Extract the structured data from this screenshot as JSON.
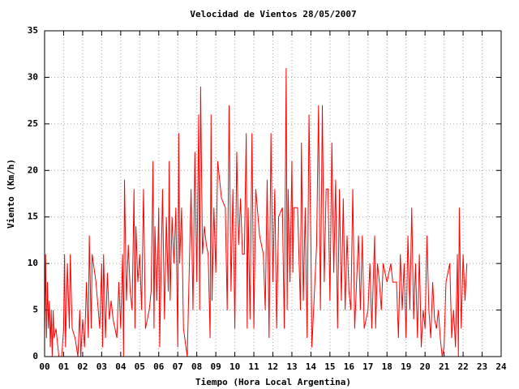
{
  "chart_data": {
    "type": "line",
    "title": "Velocidad de Vientos 28/05/2007",
    "x_label": "Tiempo (Hora Local Argentina)",
    "y_label": "Viento (Km/h)",
    "color": "#ff0000",
    "grid": true,
    "xlim": [
      0,
      24
    ],
    "ylim": [
      0,
      35
    ],
    "xticks": [
      {
        "value": 0,
        "label": "00"
      },
      {
        "value": 1,
        "label": "01"
      },
      {
        "value": 2,
        "label": "02"
      },
      {
        "value": 3,
        "label": "03"
      },
      {
        "value": 4,
        "label": "04"
      },
      {
        "value": 5,
        "label": "05"
      },
      {
        "value": 6,
        "label": "06"
      },
      {
        "value": 7,
        "label": "07"
      },
      {
        "value": 8,
        "label": "08"
      },
      {
        "value": 9,
        "label": "09"
      },
      10,
      11,
      12,
      13,
      14,
      15,
      16,
      17,
      18,
      19,
      20,
      21,
      22,
      23,
      24
    ],
    "yticks": [
      0,
      5,
      10,
      15,
      20,
      25,
      30,
      35
    ],
    "x": [
      0,
      0.05,
      0.1,
      0.15,
      0.2,
      0.25,
      0.3,
      0.35,
      0.4,
      0.45,
      0.5,
      0.6,
      0.75,
      0.9,
      1,
      1.05,
      1.1,
      1.2,
      1.3,
      1.35,
      1.45,
      1.6,
      1.75,
      1.85,
      1.9,
      2,
      2.1,
      2.2,
      2.3,
      2.35,
      2.45,
      2.5,
      2.7,
      2.9,
      3,
      3.05,
      3.1,
      3.2,
      3.3,
      3.4,
      3.5,
      3.6,
      3.8,
      3.9,
      4,
      4.1,
      4.15,
      4.2,
      4.3,
      4.4,
      4.5,
      4.6,
      4.7,
      4.75,
      4.8,
      4.9,
      5,
      5.1,
      5.2,
      5.3,
      5.5,
      5.6,
      5.7,
      5.75,
      5.8,
      5.9,
      6,
      6.05,
      6.2,
      6.3,
      6.4,
      6.5,
      6.55,
      6.6,
      6.7,
      6.8,
      6.9,
      7,
      7.05,
      7.1,
      7.2,
      7.3,
      7.5,
      7.7,
      7.8,
      7.9,
      8,
      8.1,
      8.15,
      8.2,
      8.3,
      8.4,
      8.5,
      8.6,
      8.7,
      8.75,
      8.8,
      8.9,
      9,
      9.1,
      9.3,
      9.5,
      9.6,
      9.7,
      9.8,
      9.9,
      10,
      10.1,
      10.2,
      10.3,
      10.4,
      10.5,
      10.6,
      10.65,
      10.7,
      10.8,
      10.9,
      11,
      11.1,
      11.3,
      11.5,
      11.6,
      11.7,
      11.8,
      11.9,
      12,
      12.1,
      12.2,
      12.3,
      12.5,
      12.6,
      12.7,
      12.75,
      12.8,
      12.9,
      13,
      13.05,
      13.1,
      13.3,
      13.45,
      13.5,
      13.6,
      13.7,
      13.8,
      13.9,
      14,
      14.05,
      14.3,
      14.4,
      14.5,
      14.6,
      14.7,
      14.8,
      14.9,
      15,
      15.1,
      15.2,
      15.3,
      15.4,
      15.5,
      15.6,
      15.7,
      15.8,
      15.9,
      16,
      16.1,
      16.2,
      16.3,
      16.5,
      16.6,
      16.7,
      16.8,
      17,
      17.1,
      17.2,
      17.35,
      17.4,
      17.5,
      17.6,
      17.7,
      17.8,
      18,
      18.2,
      18.3,
      18.5,
      18.6,
      18.7,
      18.8,
      18.9,
      19,
      19.1,
      19.2,
      19.3,
      19.4,
      19.5,
      19.6,
      19.7,
      19.8,
      19.9,
      20,
      20.1,
      20.2,
      20.3,
      20.4,
      20.5,
      20.6,
      20.7,
      20.8,
      20.9,
      21,
      21.1,
      21.3,
      21.4,
      21.5,
      21.6,
      21.7,
      21.75,
      21.8,
      21.9,
      22,
      22.1,
      22.2
    ],
    "values": [
      2,
      11,
      2,
      8,
      3,
      6,
      1,
      5,
      0,
      5,
      2,
      3,
      0,
      0,
      3,
      11,
      1,
      10,
      3,
      11,
      3,
      2,
      0,
      5,
      0,
      4,
      1,
      8,
      2,
      13,
      3,
      11,
      8,
      3,
      10,
      1,
      11,
      2,
      9,
      4,
      6,
      4,
      2,
      8,
      3,
      11,
      0,
      19,
      6,
      12,
      7,
      5,
      18,
      3,
      14,
      8,
      11,
      5,
      18,
      3,
      5,
      7,
      21,
      3,
      14,
      6,
      16,
      1,
      18,
      4,
      15,
      7,
      21,
      6,
      15,
      10,
      16,
      1,
      24,
      10,
      16,
      3,
      0,
      18,
      5,
      22,
      8,
      26,
      5,
      29,
      11,
      14,
      12,
      11,
      2,
      26,
      6,
      16,
      9,
      21,
      17,
      16,
      5,
      27,
      7,
      18,
      3,
      22,
      12,
      17,
      11,
      11,
      24,
      3,
      16,
      4,
      24,
      3,
      18,
      13,
      11,
      5,
      19,
      2,
      24,
      8,
      18,
      3,
      15,
      16,
      3,
      31,
      5,
      18,
      8,
      21,
      9,
      16,
      16,
      5,
      23,
      6,
      16,
      2,
      26,
      12,
      1,
      12,
      27,
      5,
      27,
      8,
      18,
      18,
      6,
      23,
      9,
      19,
      3,
      18,
      6,
      17,
      5,
      13,
      7,
      5,
      18,
      3,
      13,
      5,
      13,
      3,
      5,
      10,
      3,
      13,
      3,
      10,
      8,
      5,
      10,
      8,
      10,
      8,
      8,
      2,
      11,
      5,
      10,
      2,
      13,
      5,
      16,
      4,
      10,
      2,
      11,
      1,
      5,
      3,
      13,
      5,
      2,
      8,
      4,
      3,
      5,
      2,
      0,
      1,
      8,
      10,
      2,
      5,
      1,
      11,
      0,
      16,
      3,
      11,
      6,
      10
    ]
  }
}
